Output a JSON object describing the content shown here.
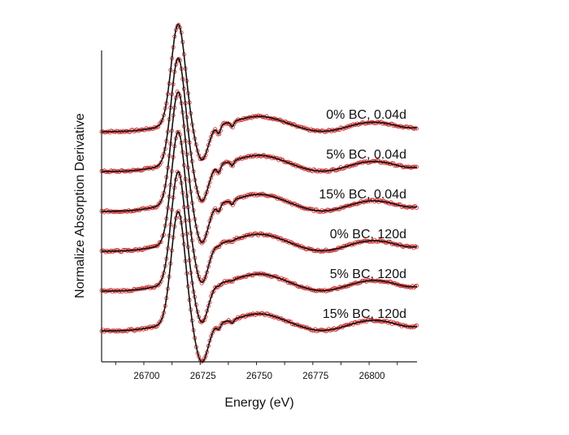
{
  "chart_data": {
    "type": "line",
    "xlabel": "Energy (eV)",
    "ylabel": "Normalize Absorption Derivative",
    "xlim": [
      26680,
      26820
    ],
    "x_ticks": [
      26700,
      26725,
      26750,
      26775,
      26800
    ],
    "x_minor_step": 12.5,
    "legend": "inline labels at right of each trace",
    "styles": {
      "fit_color": "#111111",
      "data_color": "#cc2b2b"
    },
    "series": [
      {
        "name": "0% BC, 0.04d",
        "offset": 5,
        "amp": 0.9,
        "notch": 1.0
      },
      {
        "name": "5% BC, 0.04d",
        "offset": 4,
        "amp": 0.95,
        "notch": 0.9
      },
      {
        "name": "15% BC, 0.04d",
        "offset": 3,
        "amp": 1.0,
        "notch": 0.8
      },
      {
        "name": "0% BC, 120d",
        "offset": 2,
        "amp": 1.0,
        "notch": 0.2
      },
      {
        "name": "5% BC, 120d",
        "offset": 1,
        "amp": 1.0,
        "notch": 0.2
      },
      {
        "name": "15% BC, 120d",
        "offset": 0,
        "amp": 1.0,
        "notch": 0.6
      }
    ]
  }
}
